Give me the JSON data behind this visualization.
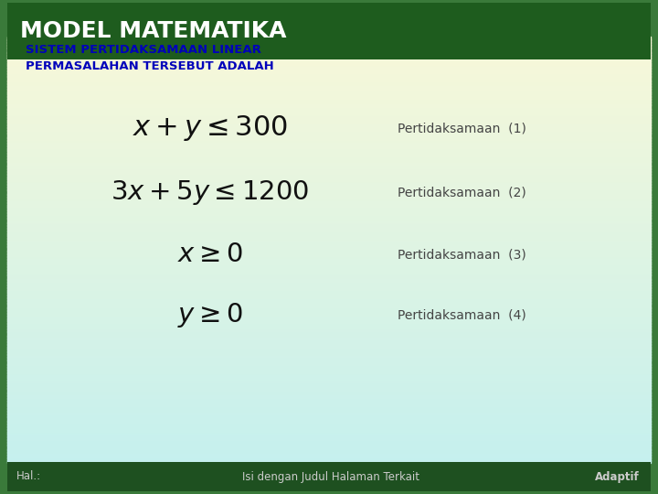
{
  "title": "MODEL MATEMATIKA",
  "subtitle1": "SISTEM PERTIDAKSAMAAN LINEAR",
  "subtitle2": "PERMASALAHAN TERSEBUT ADALAH",
  "equations": [
    {
      "latex": "$x + y \\leq 300$",
      "label": "Pertidaksamaan  (1)"
    },
    {
      "latex": "$3x + 5y \\leq 1200$",
      "label": "Pertidaksamaan  (2)"
    },
    {
      "latex": "$x \\geq 0$",
      "label": "Pertidaksamaan  (3)"
    },
    {
      "latex": "$y \\geq 0$",
      "label": "Pertidaksamaan  (4)"
    }
  ],
  "header_bg": "#1e5c1e",
  "header_text_color": "#ffffff",
  "body_bg_top": "#f8f8d8",
  "body_bg_bottom": "#c5f0ee",
  "title_fontsize": 18,
  "subtitle_color": "#0000bb",
  "equation_color": "#111111",
  "label_color": "#444444",
  "footer_bg": "#1e5020",
  "footer_text_color": "#cccccc",
  "footer_left": "Hal.:",
  "footer_center": "Isi dengan Judul Halaman Terkait",
  "footer_right": "Adaptif",
  "border_color": "#2e7030",
  "outer_bg": "#3a7a3a"
}
